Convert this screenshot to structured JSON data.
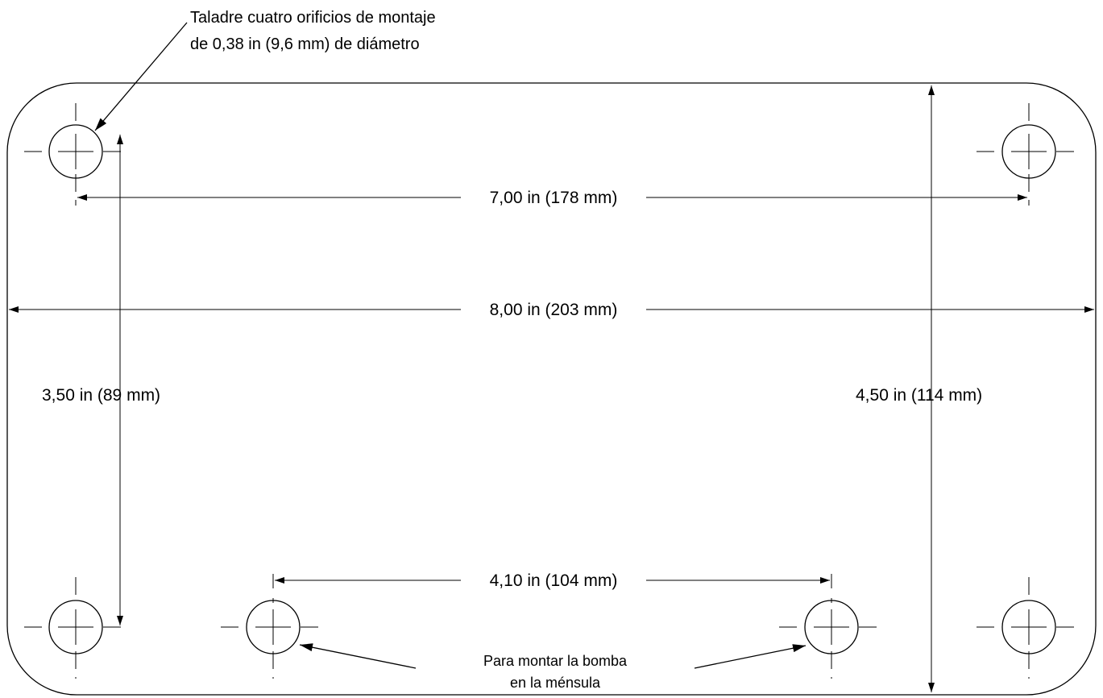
{
  "annotations": {
    "drill_note_line1": "Taladre cuatro orificios de montaje",
    "drill_note_line2": "de 0,38 in (9,6 mm) de diámetro",
    "pump_note_line1": "Para montar la bomba",
    "pump_note_line2": "en la ménsula"
  },
  "dimensions": {
    "top_hole_spacing": "7,00 in (178 mm)",
    "overall_width": "8,00 in (203 mm)",
    "vertical_hole_spacing": "3,50 in (89 mm)",
    "overall_height": "4,50 in (114 mm)",
    "bottom_hole_spacing": "4,10 in (104 mm)"
  },
  "colors": {
    "ink": "#000000",
    "background": "#ffffff"
  }
}
